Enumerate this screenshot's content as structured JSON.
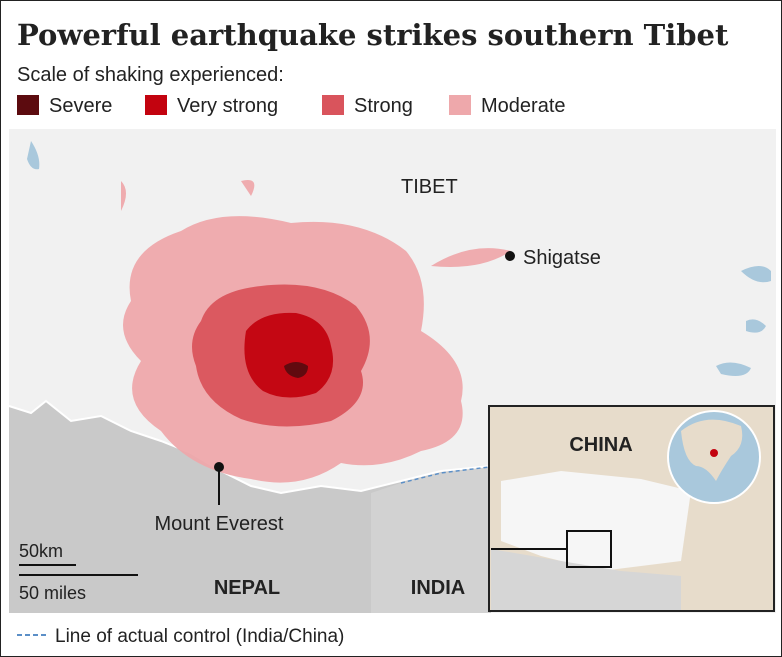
{
  "header": {
    "title": "Powerful earthquake strikes southern Tibet",
    "subtitle": "Scale of shaking experienced:"
  },
  "legend": [
    {
      "label": "Severe",
      "color": "#5c0b0f"
    },
    {
      "label": "Very strong",
      "color": "#c3030f"
    },
    {
      "label": "Strong",
      "color": "#d9545c"
    },
    {
      "label": "Moderate",
      "color": "#eea8ab"
    }
  ],
  "map": {
    "places": {
      "tibet": "TIBET",
      "shigatse": "Shigatse",
      "everest": "Mount Everest",
      "nepal": "NEPAL",
      "india": "INDIA"
    },
    "scale": {
      "km": "50km",
      "miles": "50 miles"
    },
    "inset": {
      "china": "CHINA"
    }
  },
  "footer": {
    "note": "Line of actual control (India/China)"
  }
}
